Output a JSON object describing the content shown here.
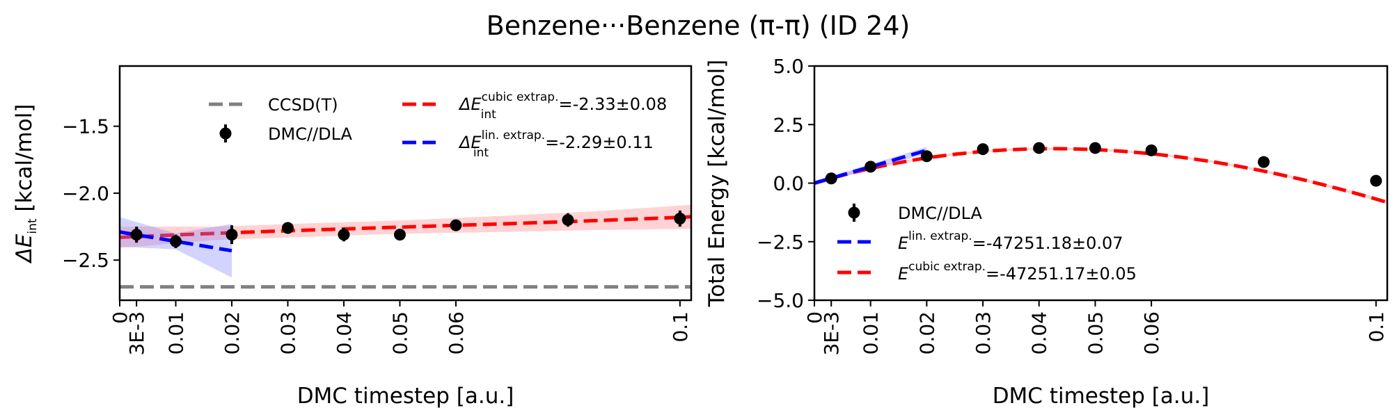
{
  "figure": {
    "title": "Benzene···Benzene (π-π) (ID 24)"
  },
  "chart_data": [
    {
      "type": "line",
      "name": "interaction-energy-panel",
      "xlabel": "DMC timestep [a.u.]",
      "ylabel": "ΔE_int [kcal/mol]",
      "ylabel_main": "ΔE",
      "ylabel_sub": "int",
      "ylabel_unit": " [kcal/mol]",
      "xlim": [
        0,
        0.102
      ],
      "ylim": [
        -2.8,
        -1.05
      ],
      "xticks": [
        {
          "value": 0,
          "label": "0"
        },
        {
          "value": 0.003,
          "label": "3E-3"
        },
        {
          "value": 0.01,
          "label": "0.01"
        },
        {
          "value": 0.02,
          "label": "0.02"
        },
        {
          "value": 0.03,
          "label": "0.03"
        },
        {
          "value": 0.04,
          "label": "0.04"
        },
        {
          "value": 0.05,
          "label": "0.05"
        },
        {
          "value": 0.06,
          "label": "0.06"
        },
        {
          "value": 0.1,
          "label": "0.1"
        }
      ],
      "yticks": [
        {
          "value": -1.5,
          "label": "−1.5"
        },
        {
          "value": -2.0,
          "label": "−2.0"
        },
        {
          "value": -2.5,
          "label": "−2.5"
        }
      ],
      "reference": {
        "name": "CCSD(T)",
        "value": -2.7,
        "color": "#808080"
      },
      "points": {
        "name": "DMC//DLA",
        "color": "#000000",
        "x": [
          0.003,
          0.01,
          0.02,
          0.03,
          0.04,
          0.05,
          0.06,
          0.08,
          0.1
        ],
        "y": [
          -2.31,
          -2.36,
          -2.31,
          -2.26,
          -2.31,
          -2.31,
          -2.24,
          -2.2,
          -2.19
        ],
        "err": [
          0.06,
          0.05,
          0.07,
          0.03,
          0.05,
          0.04,
          0.04,
          0.05,
          0.06
        ]
      },
      "fits": [
        {
          "key": "cubic",
          "color": "#ff0000",
          "band_color": "#ff8080",
          "legend_main": "ΔE",
          "legend_sup": "cubic extrap.",
          "legend_sub": "int",
          "legend_value": "=-2.33±0.08",
          "xrange": [
            0,
            0.102
          ],
          "coef": [
            -2.33,
            1.9,
            -11.0,
            70.0
          ],
          "band": [
            0.08,
            0.05,
            0.05,
            0.05,
            0.06,
            0.07,
            0.09
          ]
        },
        {
          "key": "linear",
          "color": "#0000ff",
          "band_color": "#8080ff",
          "legend_main": "ΔE",
          "legend_sup": "lin. extrap.",
          "legend_sub": "int",
          "legend_value": "=-2.29±0.11",
          "xrange": [
            0,
            0.02
          ],
          "coef": [
            -2.29,
            -7.0
          ],
          "band": [
            0.11,
            0.06,
            0.2
          ]
        }
      ],
      "legend_position": "upper center"
    },
    {
      "type": "line",
      "name": "total-energy-panel",
      "xlabel": "DMC timestep [a.u.]",
      "ylabel": "Total Energy [kcal/mol]",
      "xlim": [
        0,
        0.102
      ],
      "ylim": [
        -5.0,
        5.0
      ],
      "xticks": [
        {
          "value": 0,
          "label": "0"
        },
        {
          "value": 0.003,
          "label": "3E-3"
        },
        {
          "value": 0.01,
          "label": "0.01"
        },
        {
          "value": 0.02,
          "label": "0.02"
        },
        {
          "value": 0.03,
          "label": "0.03"
        },
        {
          "value": 0.04,
          "label": "0.04"
        },
        {
          "value": 0.05,
          "label": "0.05"
        },
        {
          "value": 0.06,
          "label": "0.06"
        },
        {
          "value": 0.1,
          "label": "0.1"
        }
      ],
      "yticks": [
        {
          "value": 5.0,
          "label": "5.0"
        },
        {
          "value": 2.5,
          "label": "2.5"
        },
        {
          "value": 0.0,
          "label": "0.0"
        },
        {
          "value": -2.5,
          "label": "−2.5"
        },
        {
          "value": -5.0,
          "label": "−5.0"
        }
      ],
      "points": {
        "name": "DMC//DLA",
        "color": "#000000",
        "x": [
          0.003,
          0.01,
          0.02,
          0.03,
          0.04,
          0.05,
          0.06,
          0.08,
          0.1
        ],
        "y": [
          0.2,
          0.7,
          1.15,
          1.45,
          1.5,
          1.5,
          1.4,
          0.9,
          0.1
        ],
        "err": [
          0.05,
          0.05,
          0.05,
          0.05,
          0.05,
          0.05,
          0.05,
          0.05,
          0.05
        ]
      },
      "fits": [
        {
          "key": "linear",
          "color": "#0000ff",
          "band_color": "#8080ff",
          "legend_main": "E",
          "legend_sup": "lin. extrap.",
          "legend_sub": "",
          "legend_value": "=-47251.18±0.07",
          "xrange": [
            0,
            0.02
          ],
          "coef": [
            0.0,
            70.0
          ],
          "band": [
            0.1,
            0.1,
            0.15
          ]
        },
        {
          "key": "cubic",
          "color": "#ff0000",
          "band_color": "#ff8080",
          "legend_main": "E",
          "legend_sup": "cubic extrap.",
          "legend_sub": "",
          "legend_value": "=-47251.17±0.05",
          "xrange": [
            0,
            0.102
          ],
          "coef": [
            0.0,
            72.0,
            -948.0,
            1600.0
          ],
          "band": [
            0.08,
            0.05,
            0.05,
            0.05,
            0.05,
            0.06,
            0.08
          ]
        }
      ],
      "legend_position": "lower left"
    }
  ]
}
